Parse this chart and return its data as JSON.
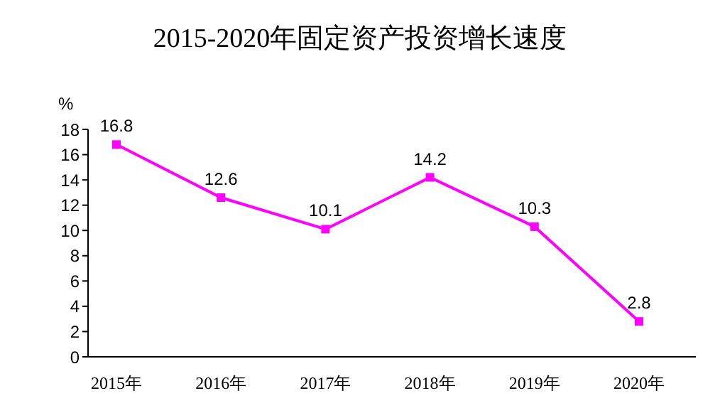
{
  "chart_data": {
    "type": "line",
    "title": "2015-2020年固定资产投资增长速度",
    "ylabel": "%",
    "categories": [
      "2015年",
      "2016年",
      "2017年",
      "2018年",
      "2019年",
      "2020年"
    ],
    "series": [
      {
        "color": "#ff00ff",
        "values": [
          16.8,
          12.6,
          10.1,
          14.2,
          10.3,
          2.8
        ]
      }
    ],
    "ylim": [
      0,
      18
    ],
    "yticks": [
      0,
      2,
      4,
      6,
      8,
      10,
      12,
      14,
      16,
      18
    ],
    "grid": false,
    "legend": false,
    "marker": "square",
    "line_style": "solid",
    "data_labels": true
  }
}
